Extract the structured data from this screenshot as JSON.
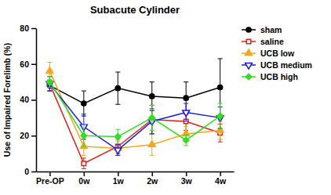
{
  "chart_data": {
    "type": "line",
    "title": "Subacute Cylinder",
    "y_label": "Use of Impaired Forelimb (%)",
    "categories": [
      "Pre-OP",
      "0w",
      "1w",
      "2w",
      "3w",
      "4w"
    ],
    "ylim": [
      0,
      80
    ],
    "yticks": [
      0,
      20,
      40,
      60,
      80
    ],
    "legend": "right",
    "series": [
      {
        "name": "sham",
        "color": "#000000",
        "marker": "circle",
        "values": [
          48,
          38,
          46.5,
          42,
          41,
          47
        ],
        "errors": [
          3,
          7,
          9,
          8,
          9,
          16
        ]
      },
      {
        "name": "saline",
        "color": "#e0201b",
        "marker": "square-open",
        "values": [
          49,
          4.5,
          14,
          29,
          28,
          21.5
        ],
        "errors": [
          2,
          3,
          4,
          8,
          5,
          5
        ]
      },
      {
        "name": "UCB low",
        "color": "#f5a623",
        "marker": "triangle",
        "values": [
          56,
          14,
          13,
          15,
          21,
          23
        ],
        "errors": [
          5,
          5,
          4,
          6,
          4,
          5
        ]
      },
      {
        "name": "UCB medium",
        "color": "#1a1ad6",
        "marker": "triangle-down-open",
        "values": [
          49,
          25,
          12,
          28,
          33,
          30
        ],
        "errors": [
          4,
          7,
          3,
          7,
          5,
          6
        ]
      },
      {
        "name": "UCB high",
        "color": "#33dd22",
        "marker": "diamond",
        "values": [
          50,
          20,
          19.5,
          30,
          17.5,
          31
        ],
        "errors": [
          3,
          6,
          4,
          7,
          3,
          7
        ]
      }
    ]
  }
}
